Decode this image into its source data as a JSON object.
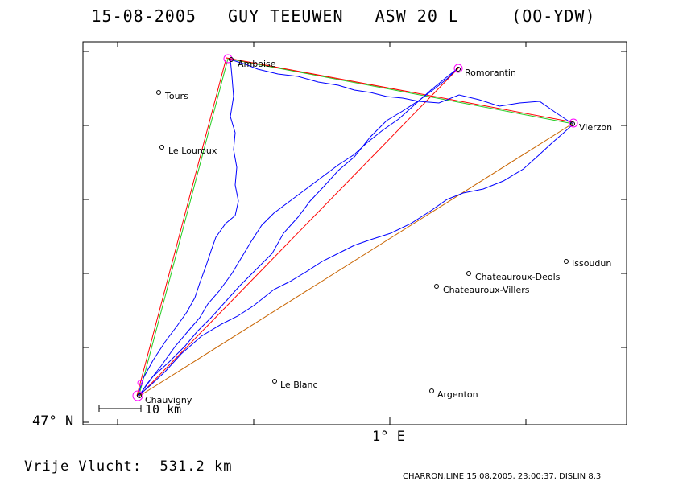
{
  "title": {
    "date": "15-08-2005",
    "pilot": "GUY TEEUWEN",
    "glider": "ASW 20 L",
    "registration": "(OO-YDW)"
  },
  "axes": {
    "lat_label": "47° N",
    "lon_label": "1° E"
  },
  "scale": {
    "label": "10 km"
  },
  "summary": {
    "label": "Vrije Vlucht:",
    "distance": "531.2 km"
  },
  "footer": "CHARRON.LINE 15.08.2005, 23:00:37, DISLIN 8.3",
  "places": [
    {
      "name": "Amboise",
      "type": "turnpoint"
    },
    {
      "name": "Romorantin",
      "type": "turnpoint"
    },
    {
      "name": "Vierzon",
      "type": "turnpoint"
    },
    {
      "name": "Chauvigny",
      "type": "start"
    },
    {
      "name": "Tours",
      "type": "place"
    },
    {
      "name": "Le Louroux",
      "type": "place"
    },
    {
      "name": "Issoudun",
      "type": "place"
    },
    {
      "name": "Chateauroux-Deols",
      "type": "place"
    },
    {
      "name": "Chateauroux-Villers",
      "type": "place"
    },
    {
      "name": "Le Blanc",
      "type": "place"
    },
    {
      "name": "Argenton",
      "type": "place"
    }
  ],
  "colors": {
    "track": "#0000ff",
    "course_red": "#ff0000",
    "course_green": "#22cc22",
    "course_orange": "#c86400",
    "turnpoint_marker": "#ff00ff",
    "frame": "#000000"
  }
}
